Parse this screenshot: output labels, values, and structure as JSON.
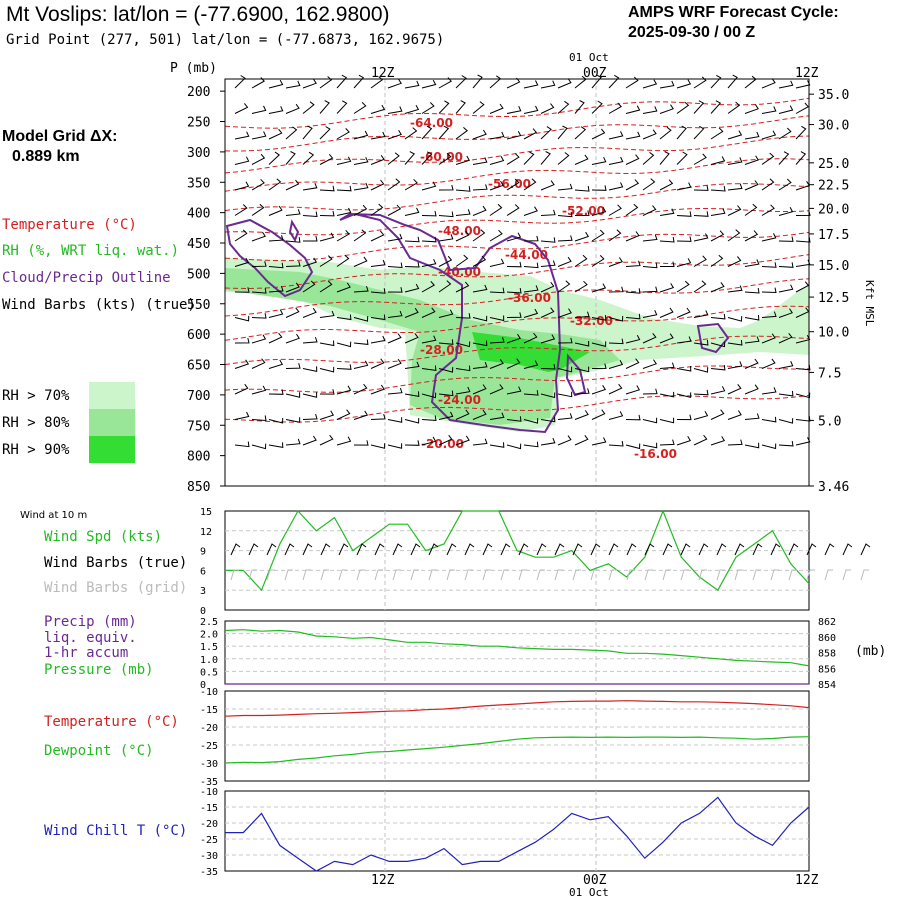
{
  "header": {
    "title": "Mt Voslips:  lat/lon = (-77.6900, 162.9800)",
    "grid_point": "Grid Point (277, 501) lat/lon = (-77.6873, 162.9675)",
    "cycle_line1": "AMPS WRF Forecast Cycle:",
    "cycle_line2": "2025-09-30 / 00  Z"
  },
  "sidebar": {
    "model_grid_label": "Model Grid ΔX:",
    "model_grid_value": "0.889 km",
    "legend": [
      {
        "label": "Temperature (°C)",
        "color": "#d42020"
      },
      {
        "label": "RH (%, WRT liq. wat.)",
        "color": "#22bb22"
      },
      {
        "label": "Cloud/Precip Outline",
        "color": "#6a2a90"
      },
      {
        "label": "Wind Barbs (kts) (true)",
        "color": "#000000"
      }
    ],
    "rh_boxes": [
      {
        "label": "RH > 70%",
        "color": "#ccf5cc"
      },
      {
        "label": "RH > 80%",
        "color": "#99e699"
      },
      {
        "label": "RH > 90%",
        "color": "#33dd33"
      }
    ]
  },
  "time_axis": {
    "top_date": "01 Oct",
    "bottom_date": "01 Oct",
    "ticks": [
      "12Z",
      "00Z",
      "12Z"
    ]
  },
  "chart_data": [
    {
      "type": "heatmap",
      "panel": "cross-section",
      "ylabel": "P (mb)",
      "right_label": "Kft MSL",
      "pressure_ticks": [
        200,
        250,
        300,
        350,
        400,
        450,
        500,
        550,
        600,
        650,
        700,
        750,
        800,
        850
      ],
      "height_ticks": [
        {
          "label": "35.0",
          "p": 205
        },
        {
          "label": "30.0",
          "p": 255
        },
        {
          "label": "25.0",
          "p": 318
        },
        {
          "label": "22.5",
          "p": 354
        },
        {
          "label": "20.0",
          "p": 393
        },
        {
          "label": "17.5",
          "p": 435
        },
        {
          "label": "15.0",
          "p": 486
        },
        {
          "label": "12.5",
          "p": 539
        },
        {
          "label": "10.0",
          "p": 596
        },
        {
          "label": "7.5",
          "p": 663
        },
        {
          "label": "5.0",
          "p": 742
        },
        {
          "label": "3.46",
          "p": 850
        }
      ],
      "temperature_labels": [
        "-64.00",
        "-60.00",
        "-56.00",
        "-52.00",
        "-48.00",
        "-44.00",
        "-40.00",
        "-36.00",
        "-32.00",
        "-28.00",
        "-24.00",
        "-20.00",
        "-16.00"
      ]
    },
    {
      "type": "line",
      "panel": "wind-10m",
      "title": "Wind at 10 m",
      "series": [
        {
          "name": "Wind Spd (kts)",
          "color": "#22bb22",
          "values": [
            6,
            6,
            3,
            10,
            15,
            12,
            14,
            9,
            11,
            13,
            13,
            9,
            10,
            15,
            15,
            15,
            9,
            8,
            8,
            9,
            6,
            7,
            5,
            8,
            15,
            8,
            5,
            3,
            8,
            10,
            12,
            7,
            4
          ]
        }
      ],
      "ylim": [
        0,
        15
      ],
      "yticks": [
        0,
        3,
        6,
        9,
        12,
        15
      ],
      "legend": [
        "Wind Spd (kts)",
        "Wind Barbs (true)",
        "Wind Barbs (grid)"
      ],
      "legend_colors": [
        "#22bb22",
        "#000000",
        "#bbbbbb"
      ]
    },
    {
      "type": "line",
      "panel": "precip-pressure",
      "legend": [
        "Precip (mm)",
        "liq. equiv.",
        "1-hr accum",
        "Pressure (mb)"
      ],
      "legend_colors": [
        "#6a2a90",
        "#6a2a90",
        "#6a2a90",
        "#22bb22"
      ],
      "ylim_left": [
        0,
        2.5
      ],
      "yticks_left": [
        "2.5",
        "2.0",
        "1.5",
        "1.0",
        "0.5",
        "0"
      ],
      "ylim_right": [
        854,
        862
      ],
      "yticks_right": [
        "862",
        "860",
        "858",
        "856",
        "854"
      ],
      "right_unit": "(mb)",
      "series": [
        {
          "name": "Pressure (mb)",
          "color": "#22bb22",
          "values": [
            860.8,
            860.9,
            860.7,
            860.8,
            860.6,
            860.1,
            860.0,
            859.8,
            859.9,
            859.6,
            859.3,
            859.3,
            859.1,
            859.0,
            858.8,
            858.8,
            858.6,
            858.5,
            858.4,
            858.4,
            858.3,
            858.2,
            857.9,
            857.9,
            857.8,
            857.6,
            857.4,
            857.2,
            857.0,
            856.9,
            856.8,
            856.7,
            856.3
          ]
        },
        {
          "name": "Precip (mm)",
          "color": "#6a2a90",
          "values": [
            0,
            0,
            0,
            0,
            0,
            0,
            0,
            0,
            0,
            0,
            0,
            0,
            0,
            0,
            0,
            0,
            0,
            0,
            0,
            0,
            0,
            0,
            0,
            0,
            0,
            0,
            0,
            0,
            0,
            0,
            0,
            0,
            0
          ]
        }
      ]
    },
    {
      "type": "line",
      "panel": "temperature",
      "ylim": [
        -35,
        -10
      ],
      "yticks": [
        "-10",
        "-15",
        "-20",
        "-25",
        "-30",
        "-35"
      ],
      "series": [
        {
          "name": "Temperature (°C)",
          "color": "#d42020",
          "values": [
            -17.0,
            -16.8,
            -16.8,
            -16.7,
            -16.5,
            -16.3,
            -16.2,
            -16.0,
            -15.8,
            -15.6,
            -15.5,
            -15.2,
            -15.0,
            -14.6,
            -14.2,
            -13.9,
            -13.6,
            -13.3,
            -13.0,
            -12.9,
            -12.8,
            -12.8,
            -12.7,
            -12.8,
            -12.9,
            -13.0,
            -13.0,
            -13.1,
            -13.3,
            -13.5,
            -13.8,
            -14.1,
            -14.6
          ]
        },
        {
          "name": "Dewpoint (°C)",
          "color": "#22bb22",
          "values": [
            -30.0,
            -29.8,
            -29.9,
            -29.6,
            -29.0,
            -28.6,
            -28.0,
            -27.6,
            -27.0,
            -26.8,
            -26.4,
            -26.0,
            -25.6,
            -25.1,
            -24.6,
            -24.0,
            -23.4,
            -23.0,
            -22.9,
            -22.8,
            -22.9,
            -22.8,
            -22.9,
            -22.8,
            -22.8,
            -22.9,
            -22.8,
            -23.0,
            -23.1,
            -23.4,
            -23.2,
            -22.8,
            -22.7
          ]
        }
      ]
    },
    {
      "type": "line",
      "panel": "wind-chill",
      "ylim": [
        -35,
        -10
      ],
      "yticks": [
        "-10",
        "-15",
        "-20",
        "-25",
        "-30",
        "-35"
      ],
      "series": [
        {
          "name": "Wind Chill T (°C)",
          "color": "#2222bb",
          "values": [
            -23,
            -23,
            -17,
            -27,
            -31,
            -35,
            -32,
            -33,
            -30,
            -32,
            -32,
            -31,
            -28,
            -33,
            -32,
            -32,
            -29,
            -26,
            -22,
            -17,
            -19,
            -18,
            -24,
            -31,
            -26,
            -20,
            -17,
            -12,
            -20,
            -24,
            -27,
            -20,
            -15
          ]
        }
      ]
    }
  ],
  "panel_labels": {
    "temperature": "Temperature (°C)",
    "temperature_color": "#d42020",
    "dewpoint": "Dewpoint (°C)",
    "dewpoint_color": "#22bb22",
    "wind_chill": "Wind Chill T (°C)",
    "wind_chill_color": "#2222bb"
  }
}
